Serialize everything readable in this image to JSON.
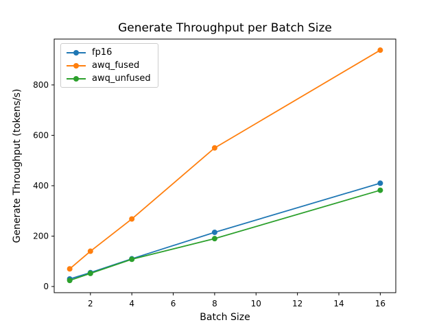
{
  "chart_data": {
    "type": "line",
    "title": "Generate Throughput per Batch Size",
    "xlabel": "Batch Size",
    "ylabel": "Generate Throughput (tokens/s)",
    "x": [
      1,
      2,
      4,
      8,
      16
    ],
    "series": [
      {
        "name": "fp16",
        "color": "#1f77b4",
        "values": [
          30,
          55,
          110,
          215,
          410
        ]
      },
      {
        "name": "awq_fused",
        "color": "#ff7f0e",
        "values": [
          70,
          140,
          268,
          550,
          938
        ]
      },
      {
        "name": "awq_unfused",
        "color": "#2ca02c",
        "values": [
          24,
          52,
          108,
          190,
          382
        ]
      }
    ],
    "xticks": [
      2,
      4,
      6,
      8,
      10,
      12,
      14,
      16
    ],
    "yticks": [
      0,
      200,
      400,
      600,
      800
    ],
    "xlim": [
      0.25,
      16.75
    ],
    "ylim": [
      -24.5,
      982
    ],
    "grid": false,
    "marker": "o",
    "legend_position": "upper left",
    "frame_color": "#000000",
    "background": "#ffffff"
  }
}
